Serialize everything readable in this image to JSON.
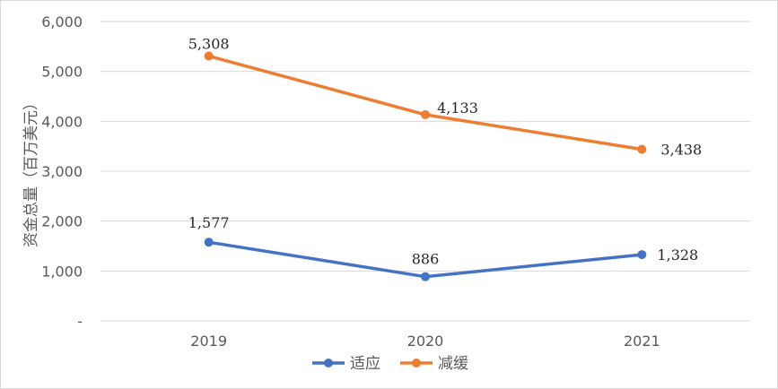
{
  "chart_data": {
    "type": "line",
    "categories": [
      "2019",
      "2020",
      "2021"
    ],
    "series": [
      {
        "name": "适应",
        "values": [
          1577,
          886,
          1328
        ],
        "labels": [
          "1,577",
          "886",
          "1,328"
        ],
        "color": "#4472C4"
      },
      {
        "name": "减缓",
        "values": [
          5308,
          4133,
          3438
        ],
        "labels": [
          "5,308",
          "4,133",
          "3,438"
        ],
        "color": "#ED7D31"
      }
    ],
    "ylabel": "资金总量（百万美元）",
    "ylim": [
      0,
      6000
    ],
    "yticks": [
      0,
      1000,
      2000,
      3000,
      4000,
      5000,
      6000
    ],
    "ytick_labels": [
      "-",
      "1,000",
      "2,000",
      "3,000",
      "4,000",
      "5,000",
      "6,000"
    ],
    "grid": true,
    "legend": "bottom"
  }
}
